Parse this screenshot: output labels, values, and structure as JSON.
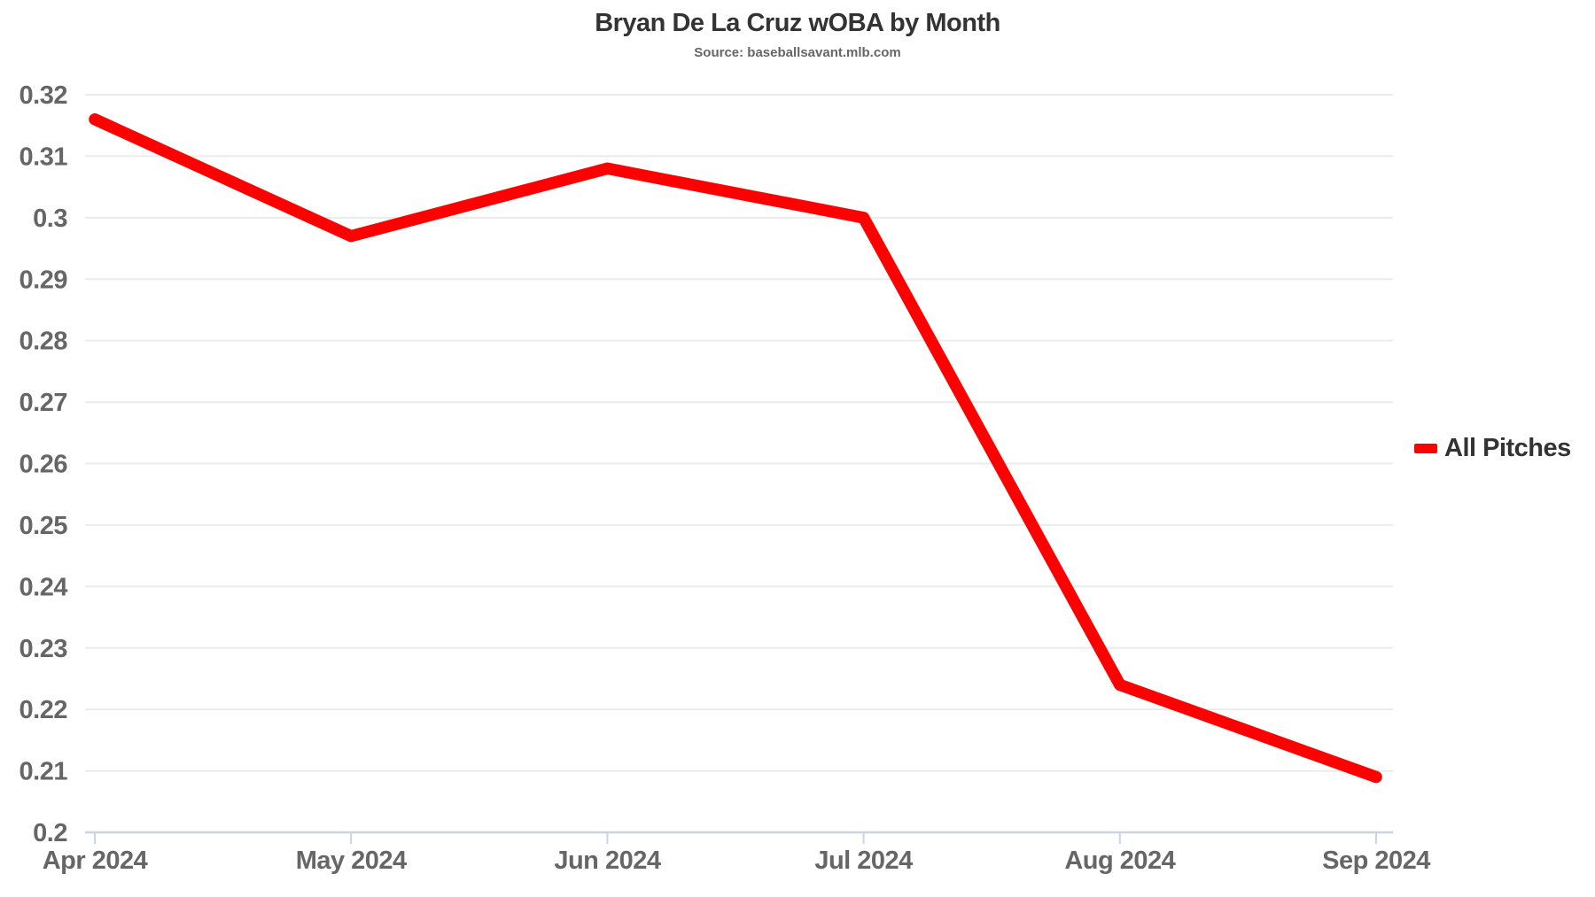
{
  "chart_data": {
    "type": "line",
    "title": "Bryan De La Cruz wOBA by Month",
    "subtitle": "Source: baseballsavant.mlb.com",
    "x_categories": [
      "Apr 2024",
      "May 2024",
      "Jun 2024",
      "Jul 2024",
      "Aug 2024",
      "Sep 2024"
    ],
    "series": [
      {
        "name": "All Pitches",
        "color": "#ff0000",
        "values": [
          0.316,
          0.297,
          0.308,
          0.3,
          0.224,
          0.209
        ]
      }
    ],
    "xlabel": "",
    "ylabel": "",
    "ylim": [
      0.2,
      0.32
    ],
    "ytick_step": 0.01,
    "ytick_labels": [
      "0.2",
      "0.21",
      "0.22",
      "0.23",
      "0.24",
      "0.25",
      "0.26",
      "0.27",
      "0.28",
      "0.29",
      "0.3",
      "0.31",
      "0.32"
    ],
    "grid": true,
    "legend_position": "right-middle"
  },
  "colors": {
    "line": "#ff0000",
    "grid": "#ebebeb",
    "axis": "#c9d4e4",
    "tick_text": "#666666",
    "title_text": "#333333",
    "background": "#ffffff"
  }
}
